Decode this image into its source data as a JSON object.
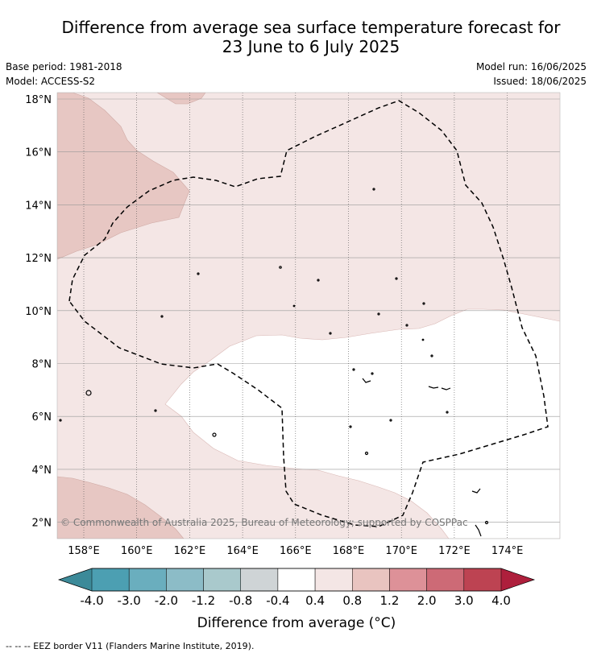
{
  "title": {
    "line1": "Difference from average sea surface temperature forecast for",
    "line2": "23 June to 6 July 2025"
  },
  "meta": {
    "base_period": "Base period: 1981-2018",
    "model": "Model: ACCESS-S2",
    "model_run": "Model run: 16/06/2025",
    "issued": "Issued: 18/06/2025"
  },
  "axes": {
    "lat_labels": [
      "18°N",
      "16°N",
      "14°N",
      "12°N",
      "10°N",
      "8°N",
      "6°N",
      "4°N",
      "2°N"
    ],
    "lon_labels": [
      "158°E",
      "160°E",
      "162°E",
      "164°E",
      "166°E",
      "168°E",
      "170°E",
      "172°E",
      "174°E"
    ]
  },
  "copyright": "© Commonwealth of Australia 2025, Bureau of Meteorology; supported by COSPPac",
  "colorbar": {
    "ticks": [
      "-4.0",
      "-3.0",
      "-2.0",
      "-1.2",
      "-0.8",
      "-0.4",
      "0.4",
      "0.8",
      "1.2",
      "2.0",
      "3.0",
      "4.0"
    ],
    "colors": [
      "#4c9fb2",
      "#6aaebe",
      "#8cbcc7",
      "#a9c9cc",
      "#cfd4d6",
      "#ffffff",
      "#f4e6e5",
      "#e9c4c0",
      "#dd9198",
      "#cd6a76",
      "#bd4352"
    ],
    "under_color": "#3c8a99",
    "over_color": "#ae1f3c",
    "label": "Difference from average (°C)"
  },
  "map_colors": {
    "band_0_4_0_8": "#f4e6e5",
    "band_0_8_1_2": "#e7c7c3",
    "neutral": "#ffffff"
  },
  "legend_note": "-- -- -- EEZ border V11 (Flanders Marine Institute, 2019)."
}
